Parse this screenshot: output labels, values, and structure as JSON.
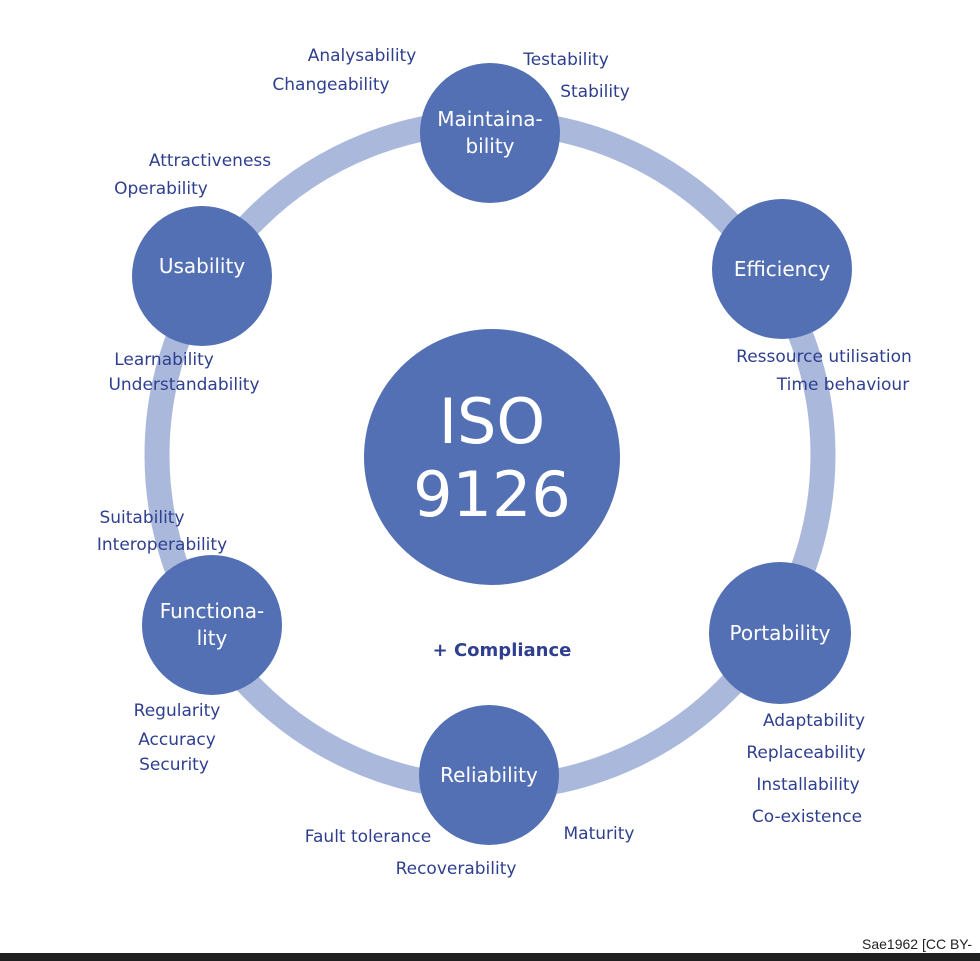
{
  "center": {
    "line1": "ISO",
    "line2": "9126"
  },
  "compliance": "+ Compliance",
  "characteristics": {
    "maintainability": {
      "line1": "Maintaina-",
      "line2": "bility"
    },
    "efficiency": {
      "label": "Efficiency"
    },
    "portability": {
      "label": "Portability"
    },
    "reliability": {
      "label": "Reliability"
    },
    "functionality": {
      "line1": "Functiona-",
      "line2": "lity"
    },
    "usability": {
      "label": "Usability"
    }
  },
  "subcharacteristics": {
    "maintainability": [
      "Analysability",
      "Changeability",
      "Testability",
      "Stability"
    ],
    "efficiency": [
      "Ressource utilisation",
      "Time behaviour"
    ],
    "portability": [
      "Adaptability",
      "Replaceability",
      "Installability",
      "Co-existence"
    ],
    "reliability": [
      "Fault tolerance",
      "Recoverability",
      "Maturity"
    ],
    "functionality": [
      "Suitability",
      "Interoperability",
      "Regularity",
      "Accuracy",
      "Security"
    ],
    "usability": [
      "Attractiveness",
      "Operability",
      "Learnability",
      "Understandability"
    ]
  },
  "credit": "Sae1962 [CC BY-",
  "colors": {
    "node": "#5470b4",
    "ring": "#aab8dc",
    "text": "#2f3f8f"
  }
}
